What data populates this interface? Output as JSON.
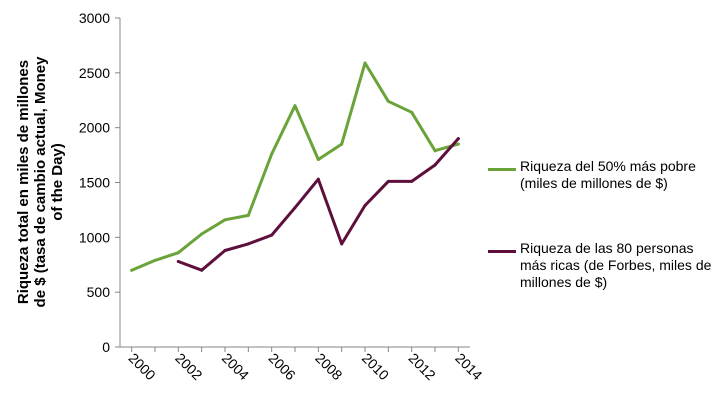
{
  "chart_data": {
    "type": "line",
    "title": "",
    "xlabel": "",
    "ylabel": "Riqueza total en miles de millones de $ (tasa de cambio actual, Money of the Day)",
    "ylim": [
      0,
      3000
    ],
    "yticks": [
      0,
      500,
      1000,
      1500,
      2000,
      2500,
      3000
    ],
    "xlim": [
      1999.5,
      2014.5
    ],
    "xticks": [
      2000,
      2002,
      2004,
      2006,
      2008,
      2010,
      2012,
      2014
    ],
    "grid": false,
    "legend_position": "right",
    "series": [
      {
        "name": "Riqueza del 50% más pobre (miles de millones de $)",
        "color": "#6aa339",
        "x": [
          2000,
          2001,
          2002,
          2003,
          2004,
          2005,
          2006,
          2007,
          2008,
          2009,
          2010,
          2011,
          2012,
          2013,
          2014
        ],
        "values": [
          700,
          790,
          860,
          1030,
          1160,
          1200,
          1760,
          2200,
          1710,
          1850,
          2590,
          2240,
          2140,
          1790,
          1850
        ]
      },
      {
        "name": "Riqueza de las 80 personas más ricas (de Forbes, miles de millones de $)",
        "color": "#5e0f3b",
        "x": [
          2002,
          2003,
          2004,
          2005,
          2006,
          2007,
          2008,
          2009,
          2010,
          2011,
          2012,
          2013,
          2014
        ],
        "values": [
          780,
          700,
          880,
          940,
          1020,
          1270,
          1530,
          940,
          1290,
          1510,
          1510,
          1660,
          1900
        ]
      }
    ]
  }
}
